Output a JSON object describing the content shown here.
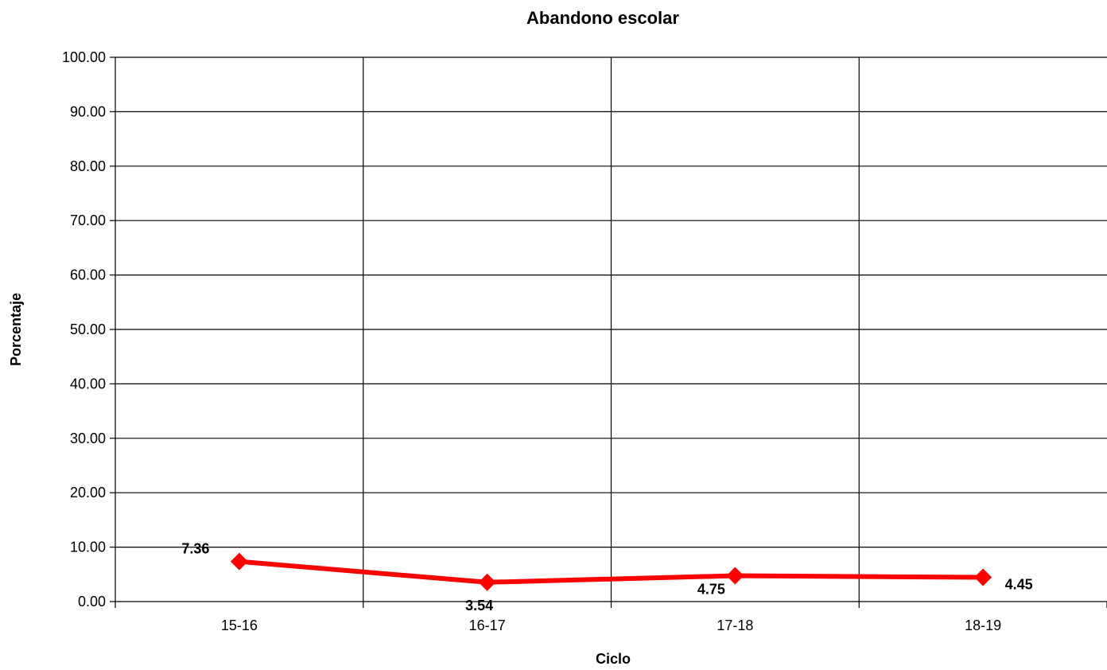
{
  "chart_data": {
    "type": "line",
    "title": "Abandono escolar",
    "xlabel": "Ciclo",
    "ylabel": "Porcentaje",
    "categories": [
      "15-16",
      "16-17",
      "17-18",
      "18-19"
    ],
    "series": [
      {
        "values": [
          7.36,
          3.54,
          4.75,
          4.45
        ],
        "labels": [
          "7.36",
          "3.54",
          "4.75",
          "4.45"
        ],
        "color": "#ff0000"
      }
    ],
    "ylim": [
      0,
      100
    ],
    "yticks": [
      0,
      10,
      20,
      30,
      40,
      50,
      60,
      70,
      80,
      90,
      100
    ],
    "ytick_labels": [
      "0.00",
      "10.00",
      "20.00",
      "30.00",
      "40.00",
      "50.00",
      "60.00",
      "70.00",
      "80.00",
      "90.00",
      "100.00"
    ],
    "grid": true,
    "legend": "none"
  }
}
